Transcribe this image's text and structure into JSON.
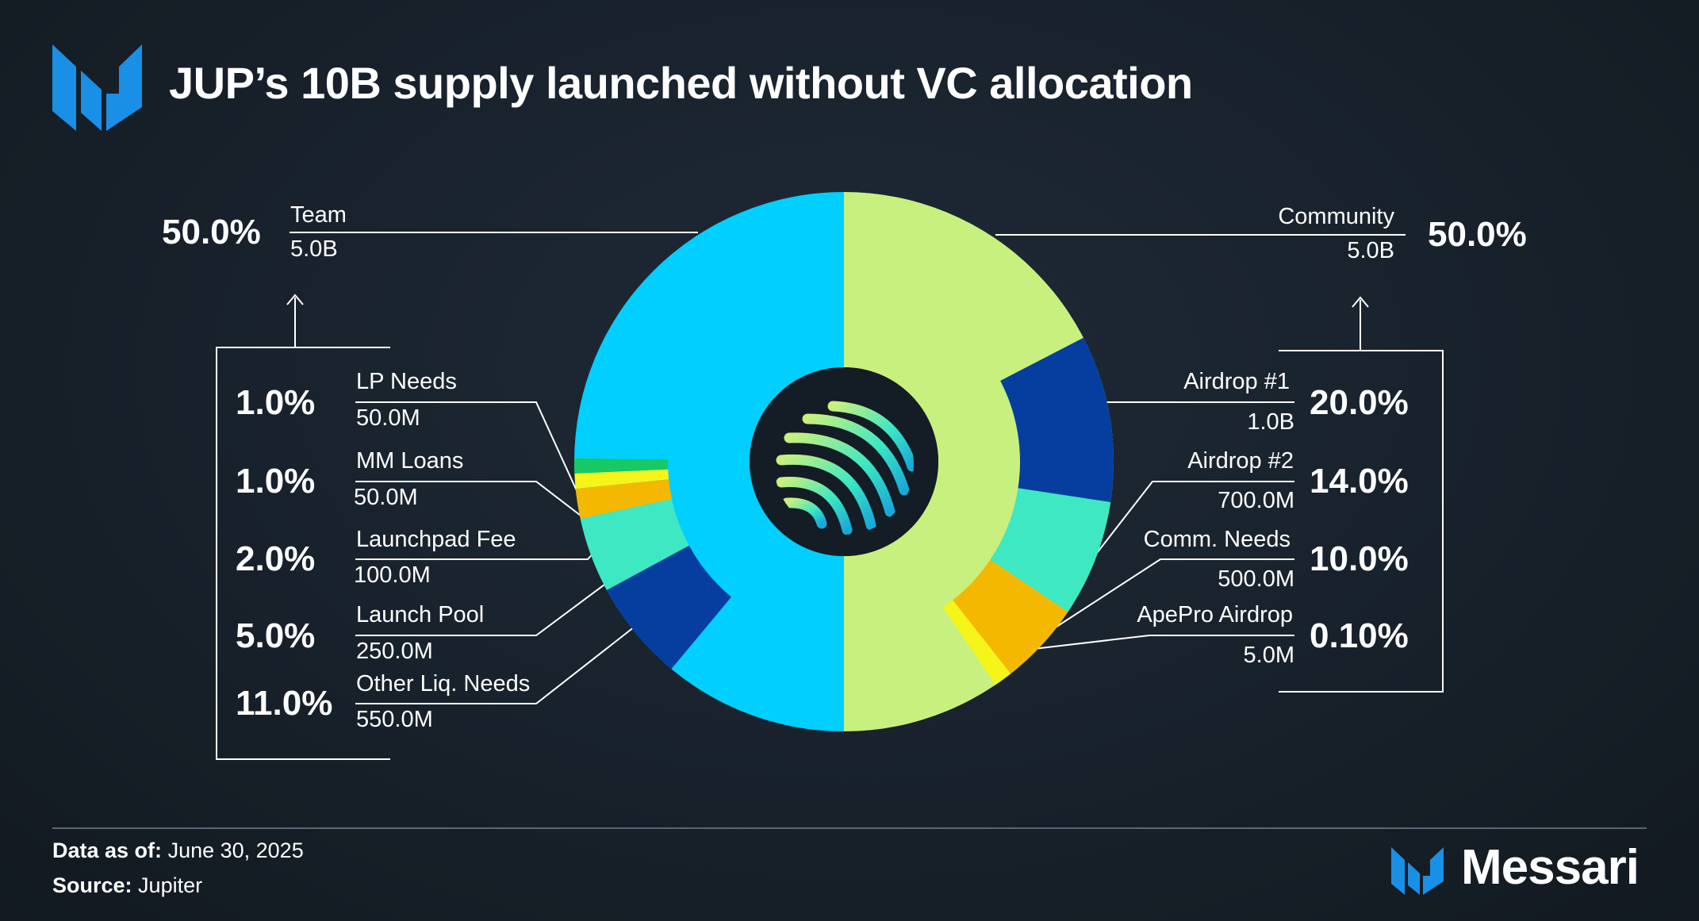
{
  "title": "JUP’s 10B supply launched without VC allocation",
  "footer": {
    "date_label": "Data as of:",
    "date_value": "June 30, 2025",
    "source_label": "Source:",
    "source_value": "Jupiter"
  },
  "brand": {
    "name": "Messari",
    "color": "#1a8fe6"
  },
  "chart_data": {
    "type": "pie",
    "title": "JUP’s 10B supply launched without VC allocation",
    "groups": [
      {
        "name": "Team",
        "percent": "50.0%",
        "amount": "5.0B",
        "color": "#00cfff",
        "value": 50.0
      },
      {
        "name": "Community",
        "percent": "50.0%",
        "amount": "5.0B",
        "color": "#c8f07e",
        "value": 50.0
      }
    ],
    "team_breakdown": [
      {
        "name": "LP Needs",
        "percent": "1.0%",
        "amount": "50.0M",
        "value": 1.0,
        "color": "#17c964"
      },
      {
        "name": "MM Loans",
        "percent": "1.0%",
        "amount": "50.0M",
        "value": 1.0,
        "color": "#f5f51a"
      },
      {
        "name": "Launchpad Fee",
        "percent": "2.0%",
        "amount": "100.0M",
        "value": 2.0,
        "color": "#f5b800"
      },
      {
        "name": "Launch Pool",
        "percent": "5.0%",
        "amount": "250.0M",
        "value": 5.0,
        "color": "#3de8c2"
      },
      {
        "name": "Other Liq. Needs",
        "percent": "11.0%",
        "amount": "550.0M",
        "value": 11.0,
        "color": "#063ea0"
      }
    ],
    "community_breakdown": [
      {
        "name": "Airdrop #1",
        "percent": "20.0%",
        "amount": "1.0B",
        "value": 20.0,
        "color": "#063ea0"
      },
      {
        "name": "Airdrop #2",
        "percent": "14.0%",
        "amount": "700.0M",
        "value": 14.0,
        "color": "#3de8c2"
      },
      {
        "name": "Comm. Needs",
        "percent": "10.0%",
        "amount": "500.0M",
        "value": 10.0,
        "color": "#f5b800"
      },
      {
        "name": "ApePro Airdrop",
        "percent": "0.10%",
        "amount": "5.0M",
        "value": 0.1,
        "color": "#f5f51a"
      }
    ]
  }
}
